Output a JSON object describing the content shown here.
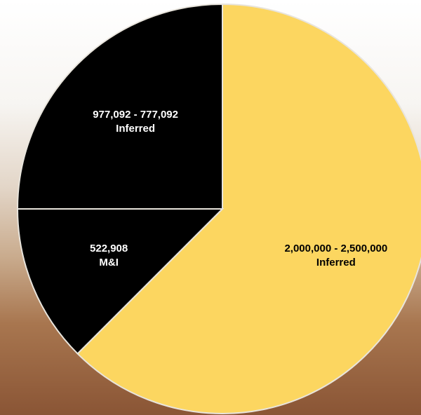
{
  "chart_data": {
    "type": "pie",
    "categories": [
      "2,000,000 -  2,500,000",
      "522,908",
      "977,092  - 777,092"
    ],
    "classes": [
      "Inferred",
      "M&I",
      "Inferred"
    ],
    "values": [
      62.5,
      12.5,
      25
    ],
    "colors": [
      "#fcd660",
      "#000000",
      "#000000"
    ],
    "label_colors": [
      "#000000",
      "#ffffff",
      "#ffffff"
    ]
  }
}
